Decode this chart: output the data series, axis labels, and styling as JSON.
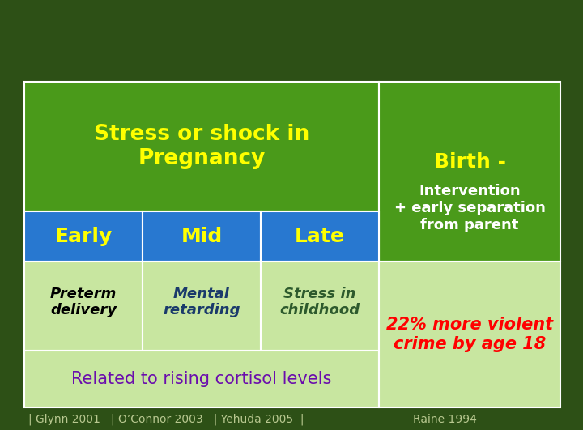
{
  "bg_color": "#2d5016",
  "cell_green_header": "#4a9a1a",
  "cell_blue": "#2878d0",
  "cell_light_green": "#c8e6a0",
  "title_left": "Stress or shock in\nPregnancy",
  "title_right": "Birth -\nIntervention\n+ early separation\nfrom parent",
  "col_headers": [
    "Early",
    "Mid",
    "Late"
  ],
  "col_contents": [
    "Preterm\ndelivery",
    "Mental\nretarding",
    "Stress in\nchildhood"
  ],
  "col_content_colors": [
    "#000000",
    "#1a3a6b",
    "#2d5a2d"
  ],
  "right_content": "22% more violent\ncrime by age 18",
  "right_content_color": "#ff0000",
  "bottom_left": "Related to rising cortisol levels",
  "bottom_left_color": "#6a0dad",
  "citations_left": "| Glynn 2001   | O’Connor 2003   | Yehuda 2005  |",
  "citation_right": "Raine 1994",
  "citation_color": "#b8c890",
  "title_color_yellow": "#ffff00",
  "header_yellow": "#ffff00"
}
